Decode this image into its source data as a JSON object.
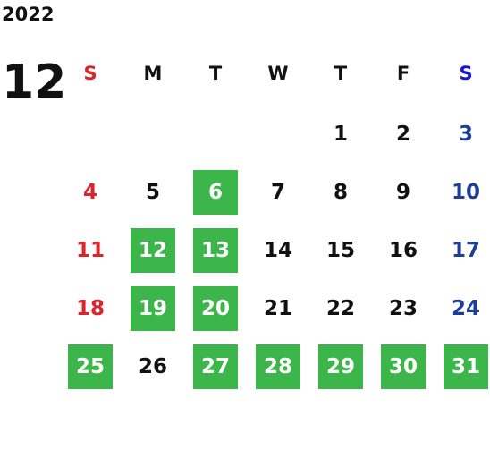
{
  "year": "2022",
  "month": "12",
  "weekdays": [
    "S",
    "M",
    "T",
    "W",
    "T",
    "F",
    "S"
  ],
  "weeks": [
    [
      null,
      null,
      null,
      null,
      {
        "day": "1",
        "highlight": false
      },
      {
        "day": "2",
        "highlight": false
      },
      {
        "day": "3",
        "highlight": false
      }
    ],
    [
      {
        "day": "4",
        "highlight": false
      },
      {
        "day": "5",
        "highlight": false
      },
      {
        "day": "6",
        "highlight": true
      },
      {
        "day": "7",
        "highlight": false
      },
      {
        "day": "8",
        "highlight": false
      },
      {
        "day": "9",
        "highlight": false
      },
      {
        "day": "10",
        "highlight": false
      }
    ],
    [
      {
        "day": "11",
        "highlight": false
      },
      {
        "day": "12",
        "highlight": true
      },
      {
        "day": "13",
        "highlight": true
      },
      {
        "day": "14",
        "highlight": false
      },
      {
        "day": "15",
        "highlight": false
      },
      {
        "day": "16",
        "highlight": false
      },
      {
        "day": "17",
        "highlight": false
      }
    ],
    [
      {
        "day": "18",
        "highlight": false
      },
      {
        "day": "19",
        "highlight": true
      },
      {
        "day": "20",
        "highlight": true
      },
      {
        "day": "21",
        "highlight": false
      },
      {
        "day": "22",
        "highlight": false
      },
      {
        "day": "23",
        "highlight": false
      },
      {
        "day": "24",
        "highlight": false
      }
    ],
    [
      {
        "day": "25",
        "highlight": true
      },
      {
        "day": "26",
        "highlight": false
      },
      {
        "day": "27",
        "highlight": true
      },
      {
        "day": "28",
        "highlight": true
      },
      {
        "day": "29",
        "highlight": true
      },
      {
        "day": "30",
        "highlight": true
      },
      {
        "day": "31",
        "highlight": true
      }
    ]
  ]
}
